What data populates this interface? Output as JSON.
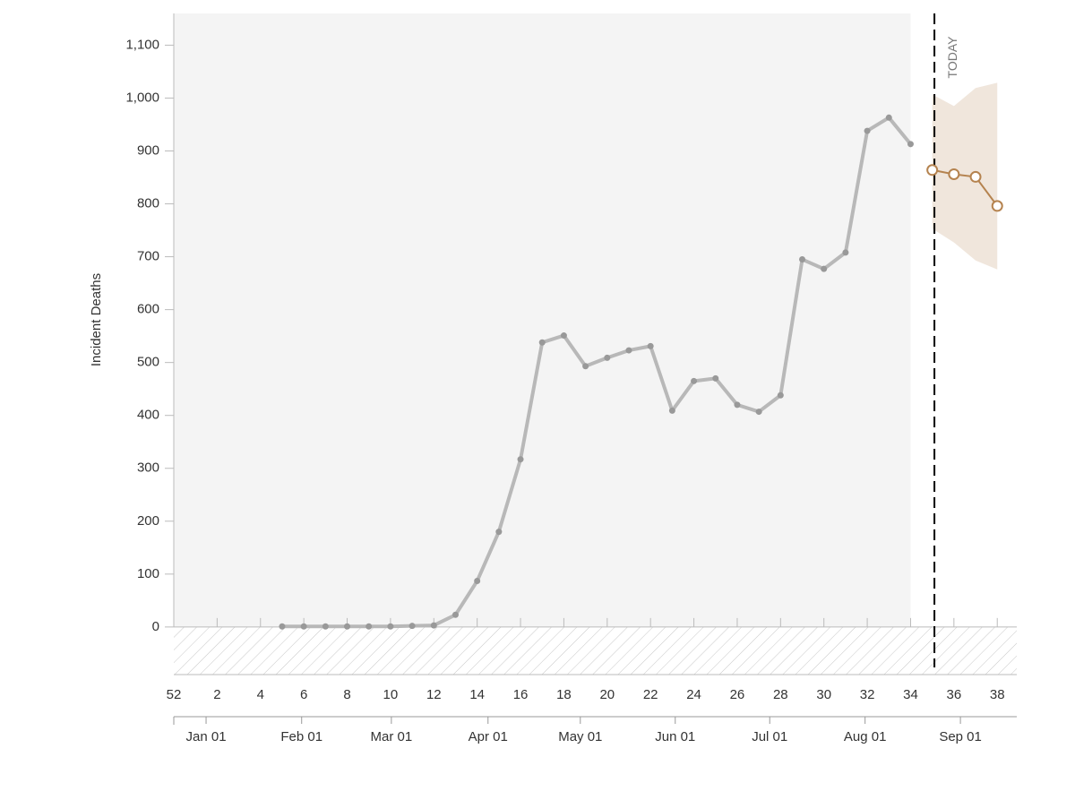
{
  "chart_data": {
    "type": "line",
    "y_label": "Incident Deaths",
    "today_label": "TODAY",
    "today": 35.1,
    "xlim": [
      0,
      38.9
    ],
    "ylim": [
      -90,
      1160
    ],
    "xticks": [
      {
        "value": 0,
        "label": "52"
      },
      2,
      4,
      6,
      8,
      10,
      12,
      14,
      16,
      18,
      20,
      22,
      24,
      26,
      28,
      30,
      32,
      34,
      36,
      38
    ],
    "x2ticks": [
      {
        "value": 1.49,
        "label": "Jan 01"
      },
      {
        "value": 5.9,
        "label": "Feb 01"
      },
      {
        "value": 10.04,
        "label": "Mar 01"
      },
      {
        "value": 14.5,
        "label": "Apr 01"
      },
      {
        "value": 18.76,
        "label": "May 01"
      },
      {
        "value": 23.14,
        "label": "Jun 01"
      },
      {
        "value": 27.5,
        "label": "Jul 01"
      },
      {
        "value": 31.9,
        "label": "Aug 01"
      },
      {
        "value": 36.3,
        "label": "Sep 01"
      }
    ],
    "yticks": [
      0,
      100,
      200,
      300,
      400,
      500,
      600,
      700,
      800,
      900,
      {
        "value": 1000,
        "label": "1,000"
      },
      {
        "value": 1100,
        "label": "1,100"
      }
    ],
    "series": [
      {
        "color": "#b8b8b8",
        "x": [
          5,
          6,
          7,
          8,
          9,
          10,
          11,
          12,
          13,
          14,
          15,
          16,
          17,
          18,
          19,
          20,
          21,
          22,
          23,
          24,
          25,
          26,
          27,
          28,
          29,
          30,
          31,
          32,
          33,
          34
        ],
        "values": [
          1,
          1,
          1,
          1,
          1,
          1,
          2,
          3,
          23,
          87,
          180,
          317,
          538,
          551,
          493,
          509,
          523,
          531,
          409,
          465,
          470,
          420,
          407,
          438,
          695,
          677,
          708,
          938,
          963,
          913
        ]
      },
      {
        "color": "#b5834f",
        "x": [
          35,
          36,
          37,
          38
        ],
        "values": [
          864,
          856,
          851,
          796
        ],
        "upper": [
          1007,
          985,
          1019,
          1029
        ],
        "lower": [
          753,
          727,
          693,
          676
        ]
      }
    ]
  }
}
